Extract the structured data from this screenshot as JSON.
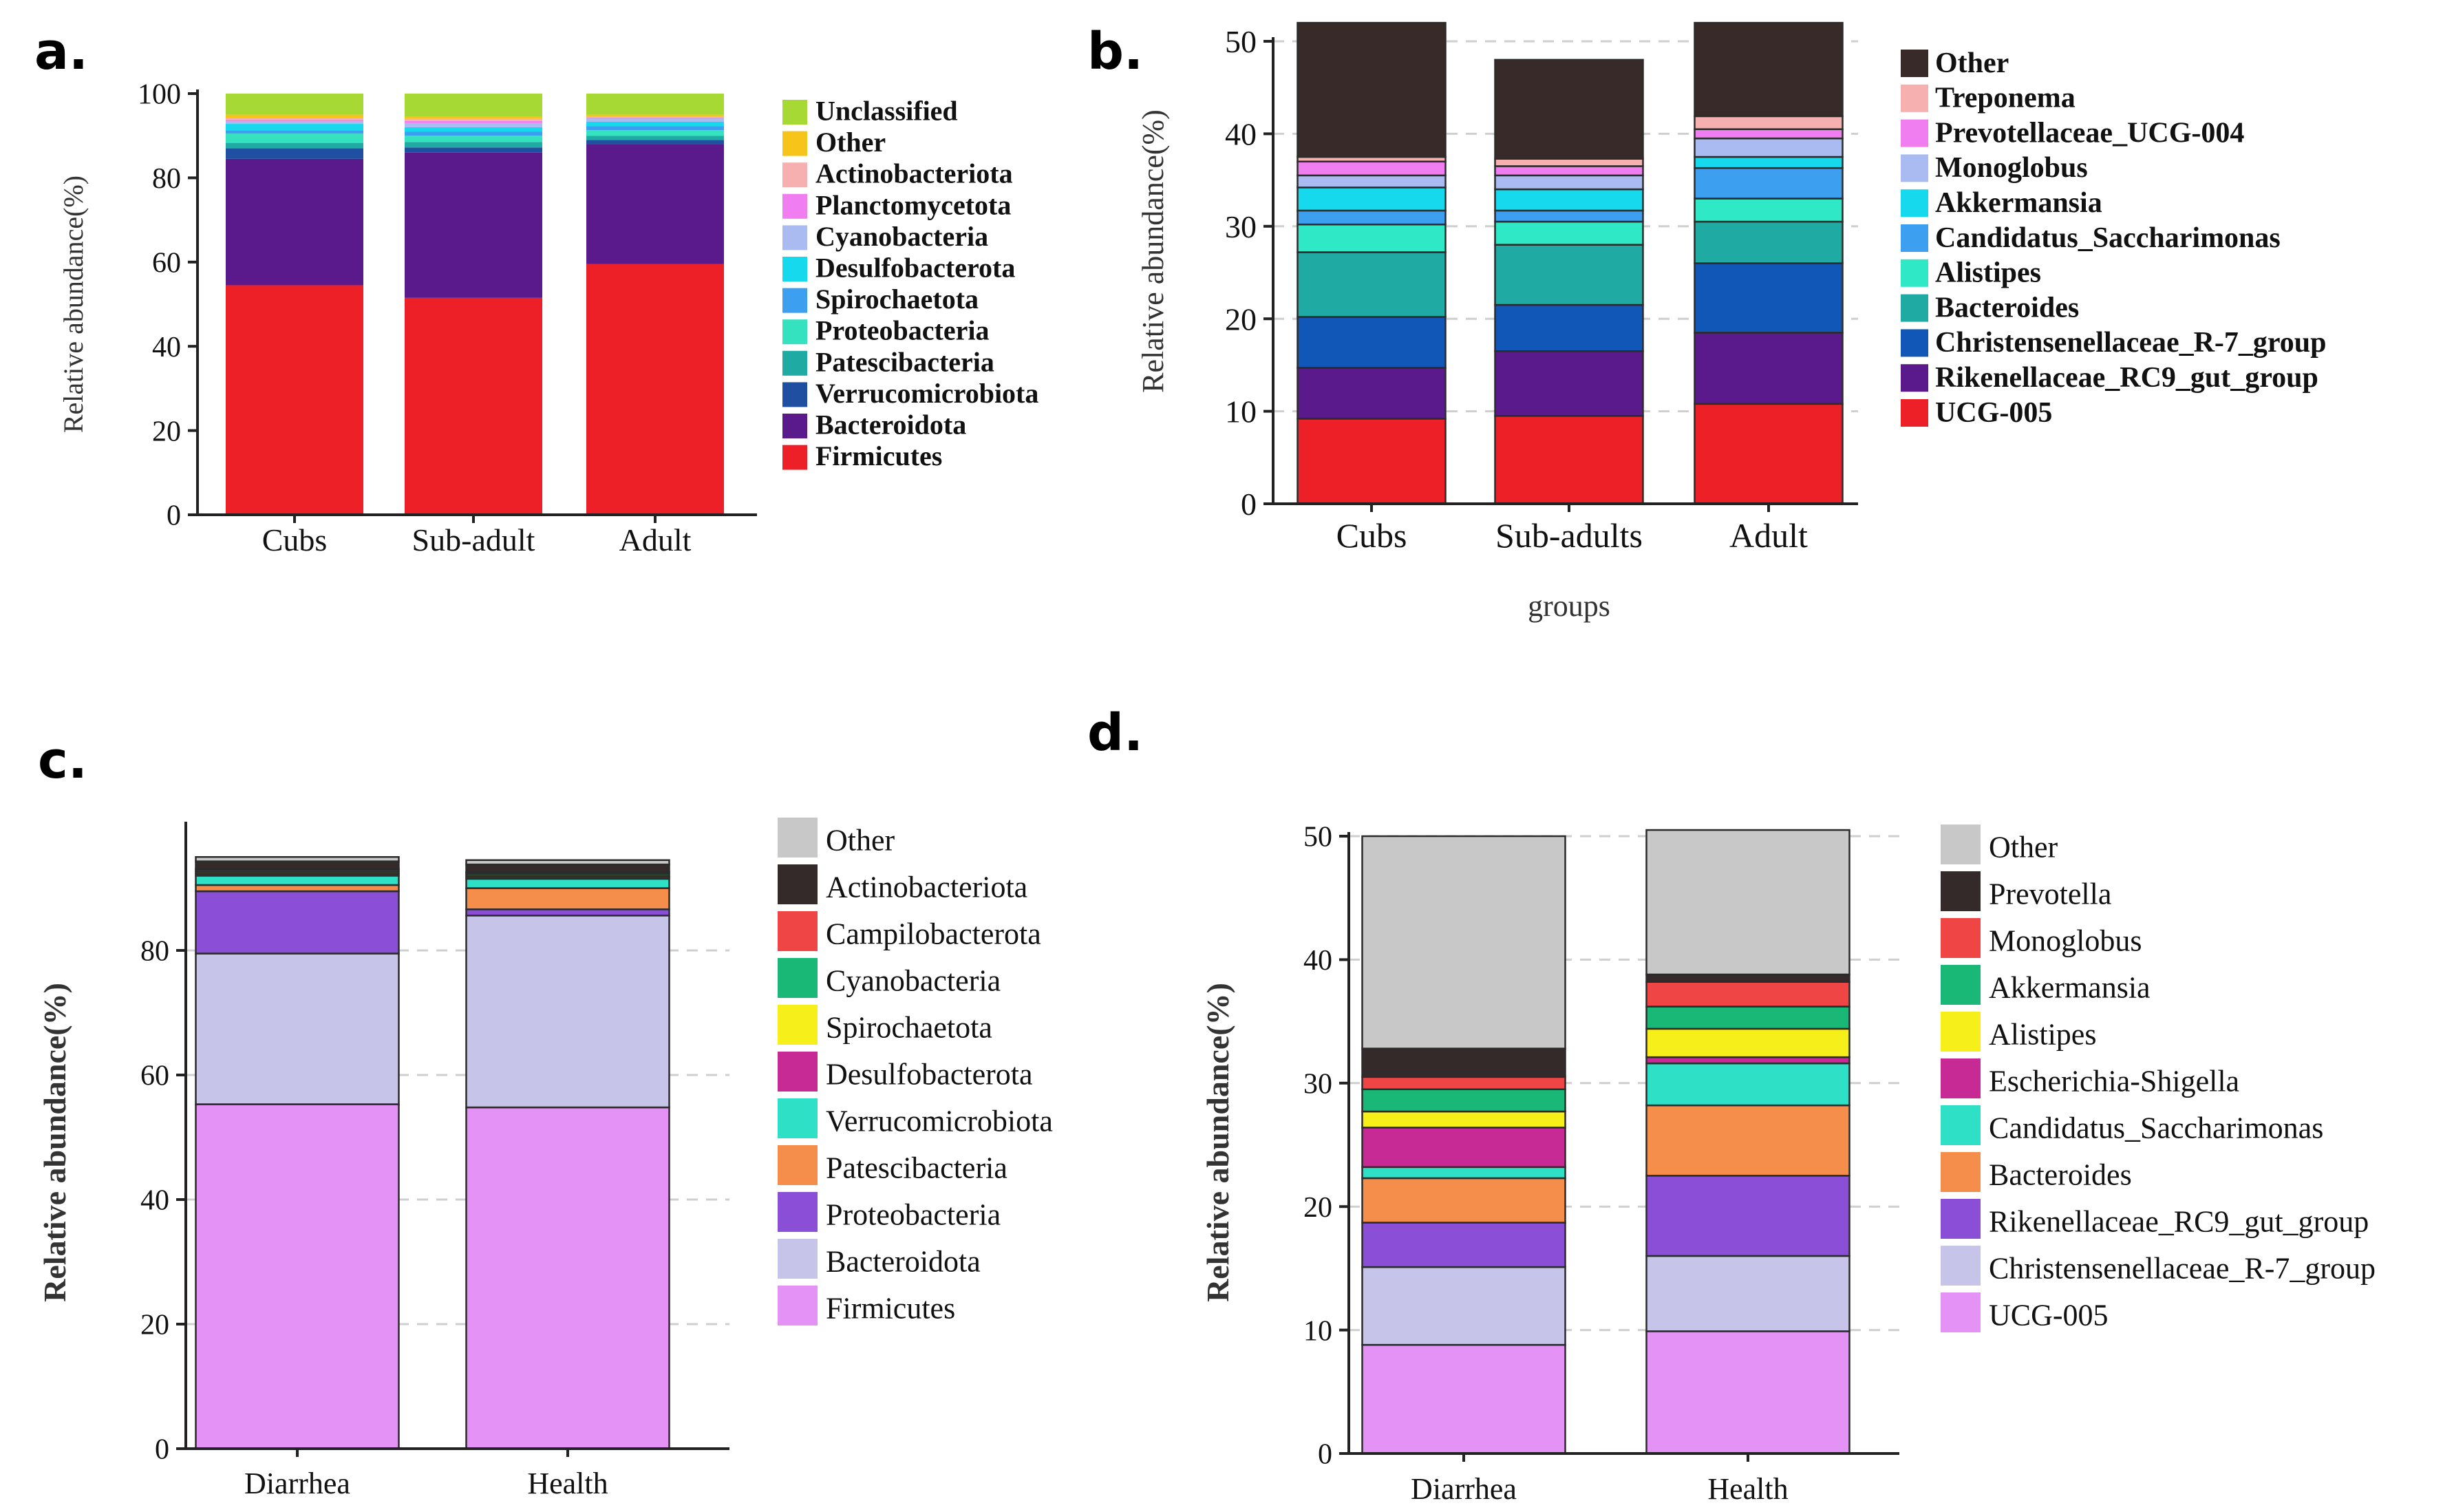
{
  "chart_data": [
    {
      "panel_label": "a.",
      "type": "bar",
      "stacked": true,
      "ylabel": "Relative abundance(%)",
      "xlabel": "",
      "ylim": [
        0,
        100
      ],
      "yticks": [
        0,
        20,
        40,
        60,
        80,
        100
      ],
      "grid": false,
      "legend_position": "right",
      "categories": [
        "Cubs",
        "Sub-adult",
        "Adult"
      ],
      "series": [
        {
          "name": "Firmicutes",
          "color": "#ee2027",
          "values": [
            54.5,
            51.5,
            59.5
          ]
        },
        {
          "name": "Bacteroidota",
          "color": "#5b1a8c",
          "values": [
            30.0,
            34.5,
            28.5
          ]
        },
        {
          "name": "Verrucomicrobiota",
          "color": "#1f4fa0",
          "values": [
            2.5,
            1.2,
            1.0
          ]
        },
        {
          "name": "Patescibacteria",
          "color": "#20aaa4",
          "values": [
            1.3,
            1.3,
            1.0
          ]
        },
        {
          "name": "Proteobacteria",
          "color": "#34e2c0",
          "values": [
            2.2,
            1.5,
            1.3
          ]
        },
        {
          "name": "Spirochaetota",
          "color": "#3c9ff0",
          "values": [
            0.8,
            1.0,
            1.0
          ]
        },
        {
          "name": "Desulfobacterota",
          "color": "#17d9ee",
          "values": [
            1.5,
            1.0,
            1.0
          ]
        },
        {
          "name": "Cyanobacteria",
          "color": "#a9bbf0",
          "values": [
            0.6,
            1.0,
            0.8
          ]
        },
        {
          "name": "Planctomycetota",
          "color": "#f07ef0",
          "values": [
            0.3,
            0.5,
            0.2
          ]
        },
        {
          "name": "Actinobacteriota",
          "color": "#f7b0b0",
          "values": [
            0.5,
            0.5,
            0.2
          ]
        },
        {
          "name": "Other",
          "color": "#f7c41a",
          "values": [
            0.8,
            0.5,
            0.5
          ]
        },
        {
          "name": "Unclassified",
          "color": "#a6d934",
          "values": [
            5.0,
            5.5,
            5.0
          ]
        }
      ]
    },
    {
      "panel_label": "b.",
      "type": "bar",
      "stacked": true,
      "ylabel": "Relative abundance(%)",
      "xlabel": "groups",
      "ylim": [
        0,
        50
      ],
      "yticks": [
        0,
        10,
        20,
        30,
        40,
        50
      ],
      "grid": true,
      "legend_position": "right",
      "categories": [
        "Cubs",
        "Sub-adults",
        "Adult"
      ],
      "series": [
        {
          "name": "UCG-005",
          "color": "#ee2027",
          "values": [
            9.2,
            9.5,
            10.8
          ]
        },
        {
          "name": "Rikenellaceae_RC9_gut_group",
          "color": "#5b1a8c",
          "values": [
            5.5,
            7.0,
            7.7
          ]
        },
        {
          "name": "Christensenellaceae_R-7_group",
          "color": "#1057b8",
          "values": [
            5.5,
            5.0,
            7.5
          ]
        },
        {
          "name": "Bacteroides",
          "color": "#20aaa4",
          "values": [
            7.0,
            6.5,
            4.5
          ]
        },
        {
          "name": "Alistipes",
          "color": "#2ee8c6",
          "values": [
            3.0,
            2.5,
            2.5
          ]
        },
        {
          "name": "Candidatus_Saccharimonas",
          "color": "#3c9ff0",
          "values": [
            1.5,
            1.2,
            3.3
          ]
        },
        {
          "name": "Akkermansia",
          "color": "#17d9ee",
          "values": [
            2.5,
            2.3,
            1.2
          ]
        },
        {
          "name": "Monoglobus",
          "color": "#a9bbf0",
          "values": [
            1.3,
            1.5,
            2.0
          ]
        },
        {
          "name": "Prevotellaceae_UCG-004",
          "color": "#f07ef0",
          "values": [
            1.5,
            1.0,
            1.0
          ]
        },
        {
          "name": "Treponema",
          "color": "#f7b0b0",
          "values": [
            0.5,
            0.8,
            1.4
          ]
        },
        {
          "name": "Other",
          "color": "#372a29",
          "values": [
            14.5,
            10.7,
            10.1
          ]
        }
      ]
    },
    {
      "panel_label": "c.",
      "type": "bar",
      "stacked": true,
      "ylabel": "Relative abundance(%)",
      "xlabel": "",
      "ylim": [
        0,
        100
      ],
      "yticks": [
        0,
        20,
        40,
        60,
        80
      ],
      "grid": true,
      "legend_position": "right",
      "categories": [
        "Diarrhea",
        "Health"
      ],
      "series": [
        {
          "name": "Firmicutes",
          "color": "#e492f5",
          "values": [
            55.3,
            54.8
          ]
        },
        {
          "name": "Bacteroidota",
          "color": "#c6c4e8",
          "values": [
            24.2,
            30.8
          ]
        },
        {
          "name": "Proteobacteria",
          "color": "#8a4fd6",
          "values": [
            10.0,
            1.0
          ]
        },
        {
          "name": "Patescibacteria",
          "color": "#f58e4a",
          "values": [
            1.0,
            3.4
          ]
        },
        {
          "name": "Verrucomicrobiota",
          "color": "#2de0c6",
          "values": [
            1.5,
            1.5
          ]
        },
        {
          "name": "Desulfobacterota",
          "color": "#c72a94",
          "values": [
            0.3,
            0.3
          ]
        },
        {
          "name": "Spirochaetota",
          "color": "#f7ef1a",
          "values": [
            0.3,
            0.3
          ]
        },
        {
          "name": "Cyanobacteria",
          "color": "#1ab877",
          "values": [
            0.3,
            0.3
          ]
        },
        {
          "name": "Campilobacterota",
          "color": "#f04545",
          "values": [
            0.2,
            0.2
          ]
        },
        {
          "name": "Actinobacteriota",
          "color": "#342a29",
          "values": [
            1.2,
            1.2
          ]
        },
        {
          "name": "Other",
          "color": "#c8c8c8",
          "values": [
            0.7,
            0.7
          ]
        }
      ]
    },
    {
      "panel_label": "d.",
      "type": "bar",
      "stacked": true,
      "ylabel": "Relative abundance(%)",
      "xlabel": "",
      "ylim": [
        0,
        50
      ],
      "yticks": [
        0,
        10,
        20,
        30,
        40,
        50
      ],
      "grid": true,
      "legend_position": "right",
      "categories": [
        "Diarrhea",
        "Health"
      ],
      "series": [
        {
          "name": "UCG-005",
          "color": "#e492f5",
          "values": [
            8.8,
            9.9
          ]
        },
        {
          "name": "Christensenellaceae_R-7_group",
          "color": "#c6c4e8",
          "values": [
            6.3,
            6.1
          ]
        },
        {
          "name": "Rikenellaceae_RC9_gut_group",
          "color": "#8a4fd6",
          "values": [
            3.6,
            6.5
          ]
        },
        {
          "name": "Bacteroides",
          "color": "#f58e4a",
          "values": [
            3.6,
            5.7
          ]
        },
        {
          "name": "Candidatus_Saccharimonas",
          "color": "#2de0c6",
          "values": [
            0.9,
            3.4
          ]
        },
        {
          "name": "Escherichia-Shigella",
          "color": "#c72a94",
          "values": [
            3.2,
            0.5
          ]
        },
        {
          "name": "Alistipes",
          "color": "#f7ef1a",
          "values": [
            1.3,
            2.3
          ]
        },
        {
          "name": "Akkermansia",
          "color": "#1ab877",
          "values": [
            1.8,
            1.8
          ]
        },
        {
          "name": "Monoglobus",
          "color": "#f04545",
          "values": [
            1.0,
            2.0
          ]
        },
        {
          "name": "Prevotella",
          "color": "#342a29",
          "values": [
            2.3,
            0.6
          ]
        },
        {
          "name": "Other",
          "color": "#c8c8c8",
          "values": [
            17.2,
            11.7
          ]
        }
      ]
    }
  ]
}
